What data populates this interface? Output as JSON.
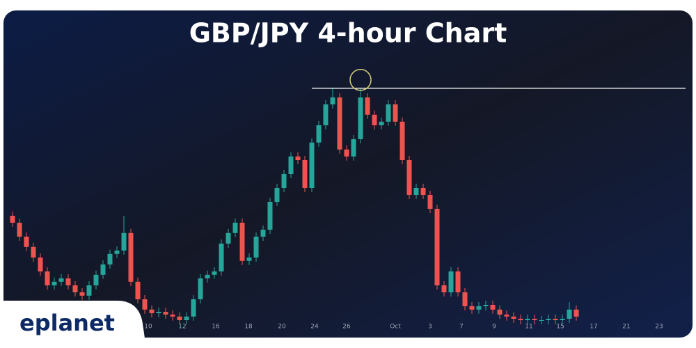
{
  "chart_data": {
    "type": "candlestick",
    "title": "GBP/JPY 4-hour Chart",
    "brand": "eplanet",
    "x": [
      0,
      1,
      2,
      3,
      4,
      5,
      6,
      7,
      8,
      9,
      10,
      11,
      12,
      13,
      14,
      15,
      16,
      17,
      18,
      19,
      20,
      21,
      22,
      23,
      24,
      25,
      26,
      27,
      28,
      29,
      30,
      31,
      32,
      33,
      34,
      35,
      36,
      37,
      38,
      39,
      40,
      41,
      42,
      43,
      44,
      45,
      46,
      47,
      48,
      49,
      50,
      51,
      52,
      53,
      54,
      55,
      56,
      57,
      58,
      59,
      60,
      61,
      62,
      63,
      64,
      65,
      66,
      67,
      68,
      69,
      70,
      71,
      72,
      73,
      74,
      75,
      76,
      77,
      78,
      79,
      80,
      81
    ],
    "open": [
      40,
      37.5,
      32.5,
      28.8,
      25,
      20,
      15,
      16.3,
      17.5,
      15,
      12.5,
      11.3,
      15,
      18.8,
      22.5,
      26.3,
      27.5,
      33.8,
      16.3,
      10,
      6.3,
      5,
      5.5,
      4.5,
      3.8,
      2.5,
      3.8,
      10,
      17.5,
      18.8,
      20,
      30,
      33.8,
      37.5,
      23.8,
      25,
      32.5,
      35,
      45,
      50,
      55,
      61.3,
      60,
      50,
      66.3,
      72.5,
      80,
      82.5,
      63.8,
      61.3,
      67.5,
      82.5,
      76.3,
      72.5,
      73.8,
      80,
      73.8,
      60,
      47.5,
      50,
      47.5,
      42.5,
      15,
      12.5,
      20,
      12.5,
      7.5,
      6.3,
      7.5,
      8,
      6.3,
      4.5,
      3.8,
      3,
      2.5,
      3,
      2.5,
      2.5,
      3,
      2.5,
      3,
      6.3
    ],
    "high": [
      41.5,
      39,
      34,
      30.3,
      26.5,
      21.5,
      17.8,
      19,
      19,
      16.5,
      14,
      16.5,
      20.3,
      24,
      27.8,
      29,
      40,
      35.3,
      17.8,
      11.5,
      7.8,
      7,
      7,
      6,
      5.3,
      5.3,
      11.5,
      19,
      20.3,
      21.5,
      31.5,
      35.3,
      39,
      39,
      26.5,
      34,
      36.5,
      46.5,
      51.5,
      56.5,
      62.8,
      62.8,
      61.5,
      67.8,
      74,
      81.5,
      85.8,
      84,
      65.3,
      69,
      85.8,
      84,
      77.8,
      75.3,
      81.5,
      81.5,
      75.3,
      61.5,
      51.5,
      51.5,
      49,
      44,
      16.5,
      21.5,
      21.5,
      14,
      9,
      9,
      9.5,
      9.5,
      7.8,
      6,
      5.3,
      4.5,
      4.5,
      4.5,
      4,
      4.5,
      4.5,
      4.5,
      9,
      7.8
    ],
    "low": [
      36,
      31,
      27.3,
      23.5,
      18.5,
      13.5,
      13.5,
      14.8,
      13.5,
      11,
      9.8,
      9.8,
      13.5,
      17.3,
      21,
      24.8,
      26,
      14.8,
      8.5,
      4.8,
      3.5,
      3.5,
      3,
      2.3,
      1,
      1,
      2.3,
      8.5,
      16,
      17.3,
      18.5,
      28.5,
      32.3,
      22.3,
      22.3,
      23.5,
      31,
      33.5,
      43.5,
      48.5,
      53.5,
      58.5,
      48.5,
      48.5,
      64.8,
      71,
      78.5,
      62.3,
      59.8,
      59.8,
      66,
      74.8,
      71,
      71,
      72.3,
      72.3,
      58.5,
      46,
      46,
      46,
      41,
      13.5,
      11,
      11,
      11,
      6,
      4.8,
      4.8,
      6,
      4.8,
      3,
      2.3,
      1.5,
      1,
      1,
      1,
      1,
      1,
      1,
      1,
      1.5,
      2.3
    ],
    "close": [
      37.5,
      32.5,
      28.8,
      25,
      20,
      15,
      16.3,
      17.5,
      15,
      12.5,
      11.3,
      15,
      18.8,
      22.5,
      26.3,
      27.5,
      33.8,
      16.3,
      10,
      6.3,
      5,
      5.5,
      4.5,
      3.8,
      2.5,
      3.8,
      10,
      17.5,
      18.8,
      20,
      30,
      33.8,
      37.5,
      23.8,
      25,
      32.5,
      35,
      45,
      50,
      55,
      61.3,
      60,
      50,
      66.3,
      72.5,
      80,
      82.5,
      63.8,
      61.3,
      67.5,
      82.5,
      76.3,
      72.5,
      73.8,
      80,
      73.8,
      60,
      47.5,
      50,
      47.5,
      42.5,
      15,
      12.5,
      20,
      12.5,
      7.5,
      6.3,
      7.5,
      8,
      6.3,
      4.5,
      3.8,
      3,
      2.5,
      3,
      2.5,
      2.5,
      3,
      2.5,
      3,
      6.3,
      3.8
    ],
    "up_color": "#26a69a",
    "down_color": "#ef5350",
    "resistance": 85.8,
    "xlim": [
      -0.3,
      96.7
    ],
    "ylim": [
      0,
      100
    ],
    "xticks": [
      {
        "value": 19.5,
        "label": "10"
      },
      {
        "value": 24.4,
        "label": "12"
      },
      {
        "value": 29.2,
        "label": "16"
      },
      {
        "value": 33.9,
        "label": "18"
      },
      {
        "value": 38.7,
        "label": "20"
      },
      {
        "value": 43.4,
        "label": "24"
      },
      {
        "value": 48,
        "label": "26"
      },
      {
        "value": 55,
        "label": "Oct"
      },
      {
        "value": 60,
        "label": "3"
      },
      {
        "value": 64.5,
        "label": "7"
      },
      {
        "value": 69.2,
        "label": "9"
      },
      {
        "value": 74.2,
        "label": "11"
      },
      {
        "value": 78.7,
        "label": "15"
      },
      {
        "value": 83.5,
        "label": "17"
      },
      {
        "value": 88.2,
        "label": "21"
      },
      {
        "value": 92.9,
        "label": "23"
      }
    ]
  }
}
